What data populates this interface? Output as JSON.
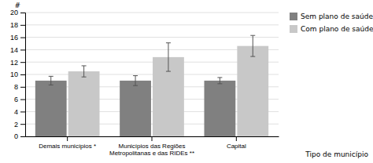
{
  "chart_data": {
    "type": "bar",
    "categories": [
      "Demais municípios *",
      "Municípios das Regiões\nMetropolitanas e das RIDEs **",
      "Capital"
    ],
    "series": [
      {
        "name": "Sem plano de saúde",
        "color": "#808080",
        "values": [
          9.0,
          9.0,
          9.0
        ],
        "errors": [
          0.7,
          0.8,
          0.5
        ]
      },
      {
        "name": "Com plano de saúde",
        "color": "#c8c8c8",
        "values": [
          10.5,
          12.8,
          14.6
        ],
        "errors": [
          0.9,
          2.3,
          1.7
        ]
      }
    ],
    "ylabel": "#",
    "xlabel": "Tipo de município",
    "ylim": [
      0,
      20
    ],
    "yticks": [
      0,
      2,
      4,
      6,
      8,
      10,
      12,
      14,
      16,
      18,
      20
    ],
    "grid": true,
    "legend": "right"
  }
}
